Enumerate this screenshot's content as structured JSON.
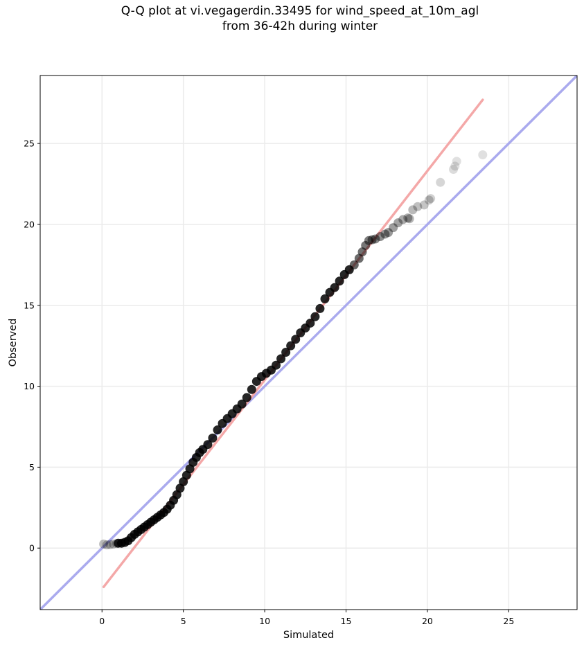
{
  "chart_data": {
    "type": "scatter",
    "title": [
      "Q-Q plot at vi.vegagerdin.33495 for wind_speed_at_10m_agl",
      "from 36-42h during winter"
    ],
    "xlabel": "Simulated",
    "ylabel": "Observed",
    "xlim": [
      -3.8,
      29.2
    ],
    "ylim": [
      -3.8,
      29.2
    ],
    "xticks": [
      0,
      5,
      10,
      15,
      20,
      25
    ],
    "yticks": [
      0,
      5,
      10,
      15,
      20,
      25
    ],
    "grid": true,
    "colors": {
      "points": "#000000",
      "identity_line": "#aaaaee",
      "fit_line": "#f4a8a8",
      "grid": "#ebebeb"
    },
    "reference_lines": [
      {
        "role": "identity",
        "x": [
          -3.8,
          29.2
        ],
        "y": [
          -3.8,
          29.2
        ]
      },
      {
        "role": "fit",
        "x": [
          0.1,
          23.4
        ],
        "y": [
          -2.4,
          27.7
        ]
      }
    ],
    "series": [
      {
        "x": [
          0.1,
          0.3,
          0.5,
          0.7,
          0.9,
          1.0,
          1.2,
          1.4,
          1.6,
          1.8,
          2.0,
          2.2,
          2.4,
          2.6,
          2.8,
          3.0,
          3.2,
          3.4,
          3.6,
          3.8,
          4.0,
          4.2,
          4.4,
          4.6,
          4.8,
          5.0,
          5.2,
          5.4,
          5.6,
          5.8,
          6.0,
          6.2,
          6.5,
          6.8,
          7.1,
          7.4,
          7.7,
          8.0,
          8.3,
          8.6,
          8.9,
          9.2,
          9.5,
          9.8,
          10.1,
          10.4,
          10.7,
          11.0,
          11.3,
          11.6,
          11.9,
          12.2,
          12.5,
          12.8,
          13.1,
          13.4,
          13.7,
          14.0,
          14.3,
          14.6,
          14.9,
          15.2,
          15.5,
          15.8,
          16.0,
          16.2,
          16.4,
          16.6,
          16.8,
          17.1,
          17.4,
          17.6,
          17.9,
          18.2,
          18.5,
          18.8,
          18.9,
          19.1,
          19.4,
          19.8,
          20.1,
          20.2,
          20.8,
          21.6,
          21.7,
          21.8,
          23.4
        ],
        "y": [
          0.25,
          0.2,
          0.22,
          0.25,
          0.28,
          0.3,
          0.3,
          0.35,
          0.45,
          0.65,
          0.85,
          1.0,
          1.15,
          1.3,
          1.45,
          1.6,
          1.75,
          1.9,
          2.05,
          2.2,
          2.4,
          2.65,
          2.95,
          3.3,
          3.7,
          4.1,
          4.5,
          4.9,
          5.3,
          5.6,
          5.9,
          6.1,
          6.4,
          6.8,
          7.3,
          7.7,
          8.0,
          8.3,
          8.6,
          8.9,
          9.3,
          9.8,
          10.3,
          10.6,
          10.8,
          11.0,
          11.3,
          11.7,
          12.1,
          12.5,
          12.9,
          13.3,
          13.6,
          13.9,
          14.3,
          14.8,
          15.4,
          15.8,
          16.1,
          16.5,
          16.9,
          17.2,
          17.5,
          17.9,
          18.3,
          18.7,
          19.0,
          19.05,
          19.1,
          19.25,
          19.4,
          19.5,
          19.8,
          20.1,
          20.3,
          20.4,
          20.35,
          20.9,
          21.1,
          21.2,
          21.5,
          21.6,
          22.6,
          23.4,
          23.6,
          23.9,
          24.3
        ]
      }
    ]
  }
}
